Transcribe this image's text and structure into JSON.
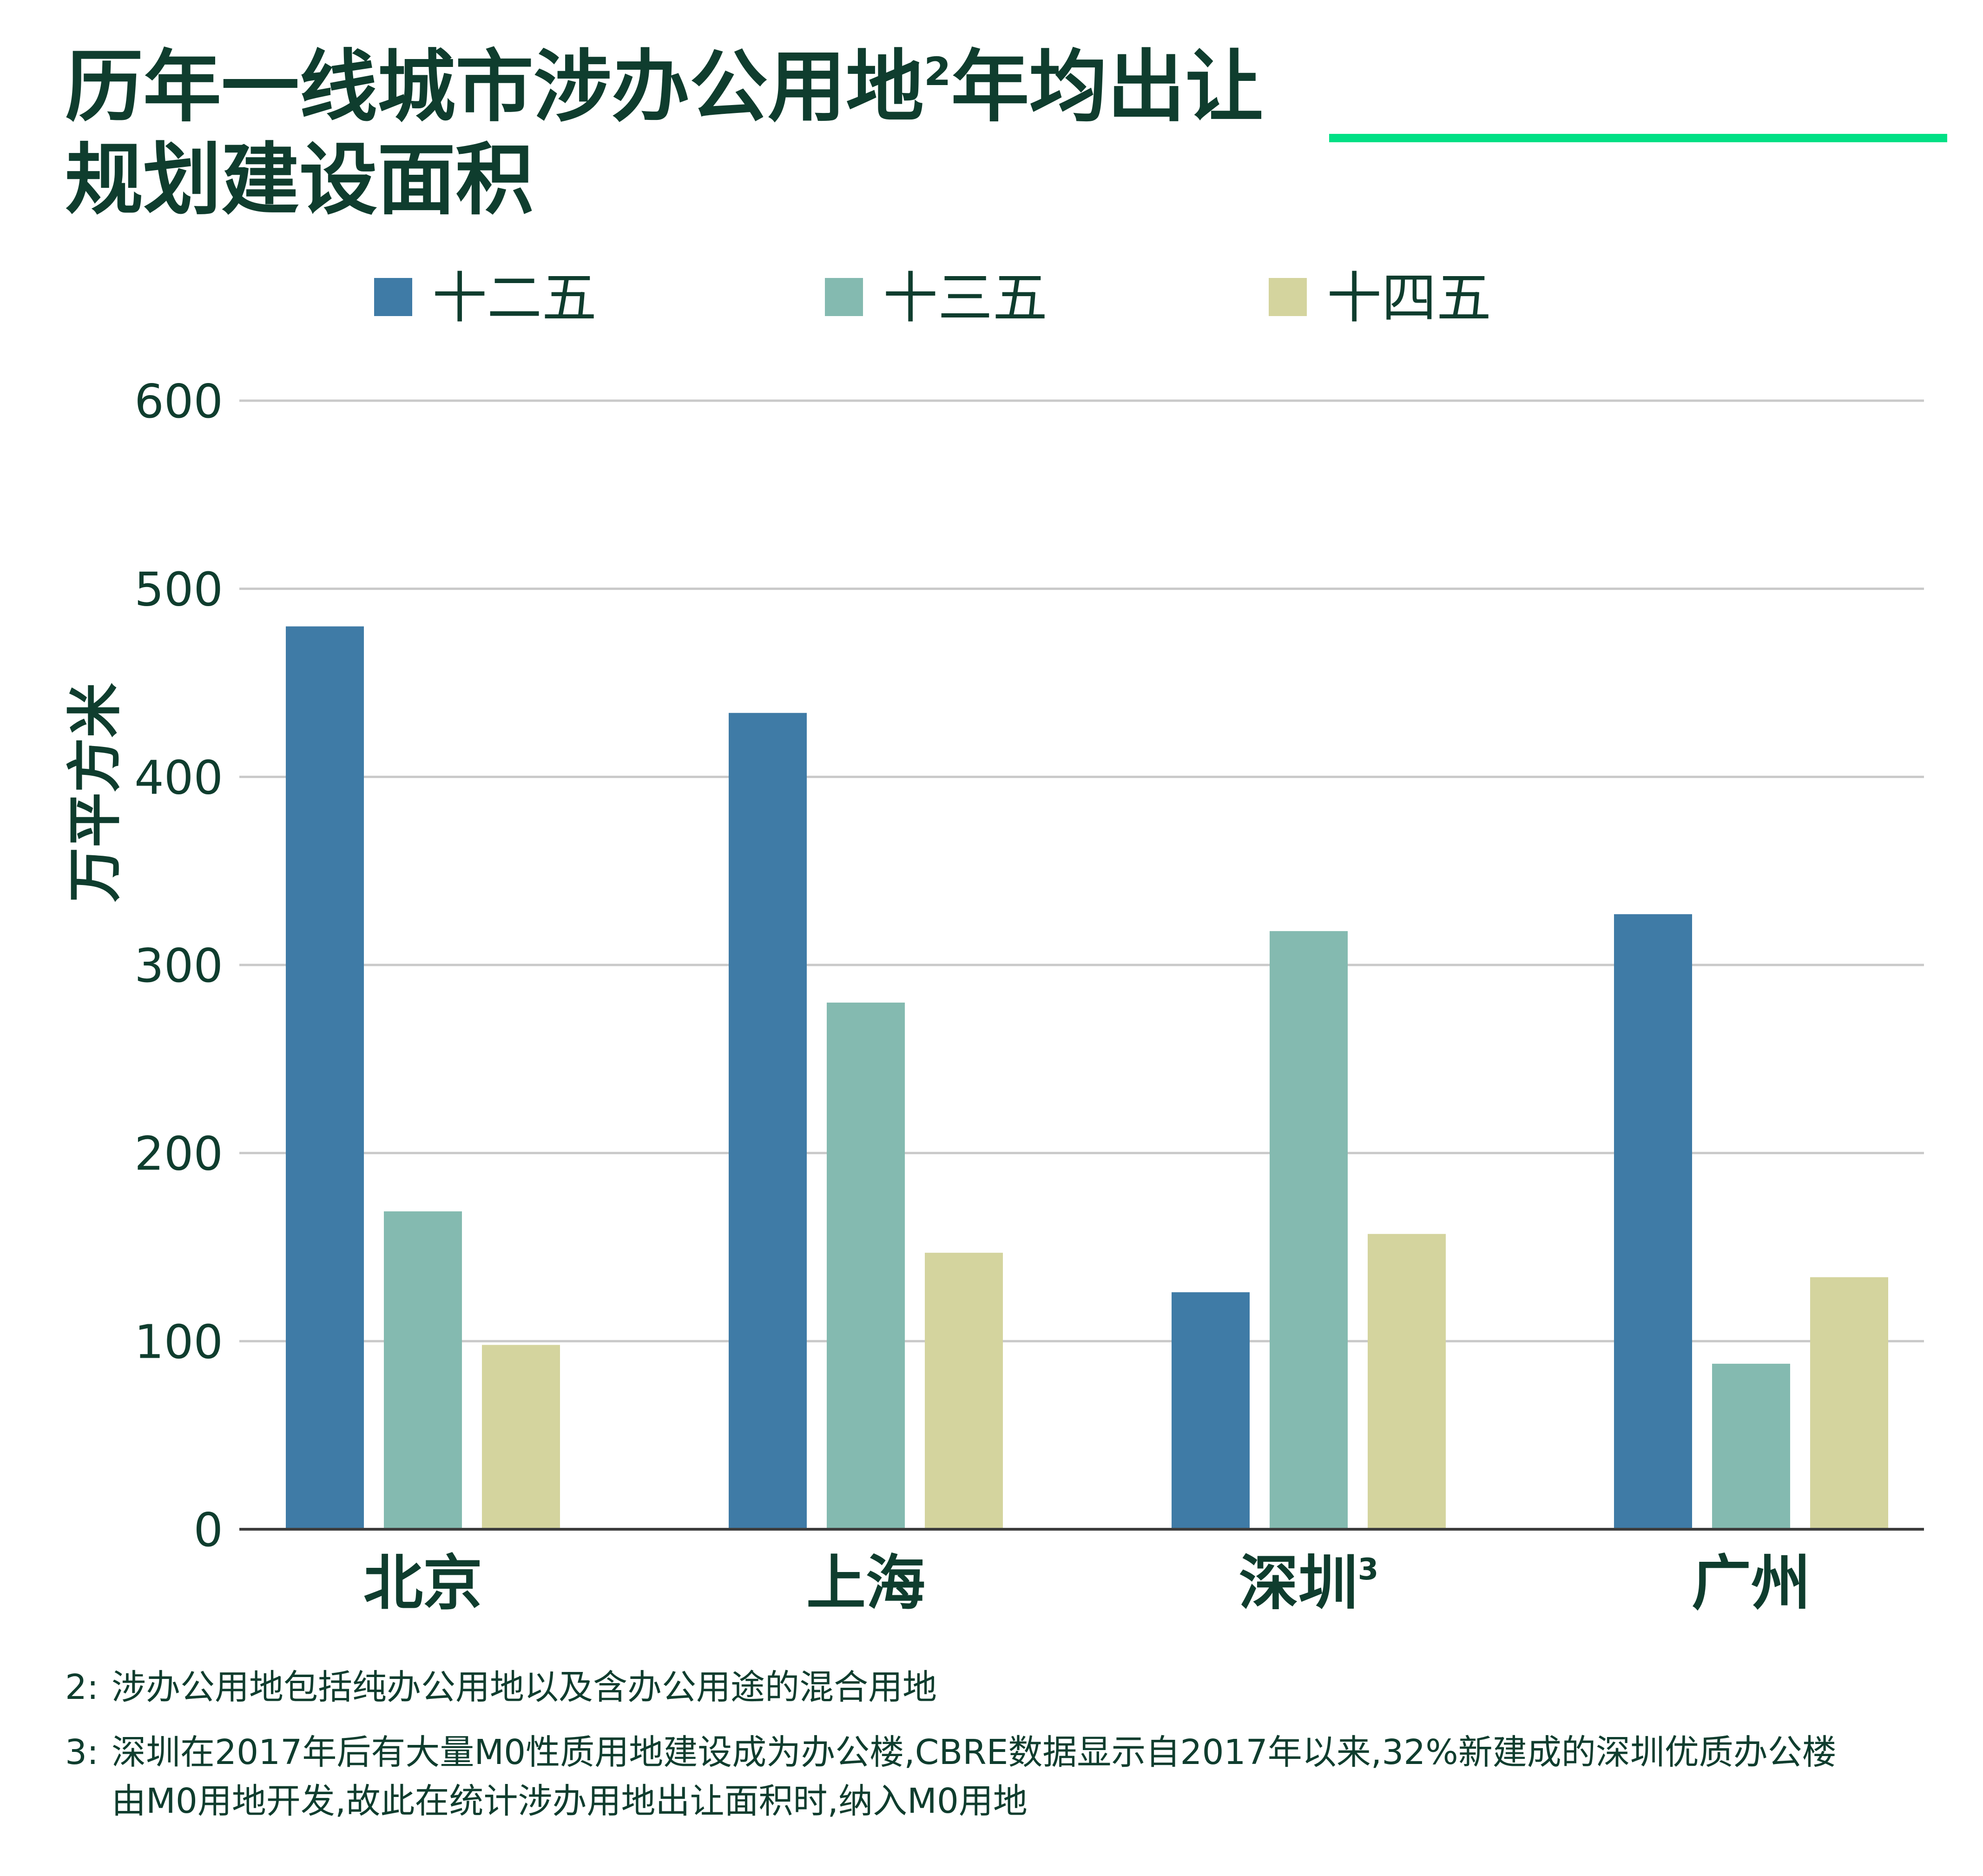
{
  "title": {
    "line1": "历年一线城市涉办公用地",
    "line1_sup": "2",
    "line1_rest": "年均出让",
    "line2": "规划建设面积"
  },
  "accent_color": "#00e085",
  "chart_data": {
    "type": "bar",
    "categories": [
      "北京",
      "上海",
      "深圳",
      "广州"
    ],
    "category_sups": [
      "",
      "",
      "3",
      ""
    ],
    "series": [
      {
        "name": "十二五",
        "color": "#3f7ba6",
        "values": [
          480,
          434,
          126,
          327
        ]
      },
      {
        "name": "十三五",
        "color": "#84bab0",
        "values": [
          169,
          280,
          318,
          88
        ]
      },
      {
        "name": "十四五",
        "color": "#d4d49e",
        "values": [
          98,
          147,
          157,
          134
        ]
      }
    ],
    "ylabel": "万平方米",
    "ylim": [
      0,
      600
    ],
    "yticks": [
      0,
      100,
      200,
      300,
      400,
      500,
      600
    ],
    "grid": true,
    "legend": "top"
  },
  "footnotes": [
    {
      "marker": "2:",
      "lines": [
        "涉办公用地包括纯办公用地以及含办公用途的混合用地"
      ]
    },
    {
      "marker": "3:",
      "lines": [
        "深圳在2017年后有大量M0性质用地建设成为办公楼,CBRE数据显示自2017年以来,32%新建成的深圳优质办公楼",
        "由M0用地开发,故此在统计涉办用地出让面积时,纳入M0用地"
      ]
    }
  ]
}
